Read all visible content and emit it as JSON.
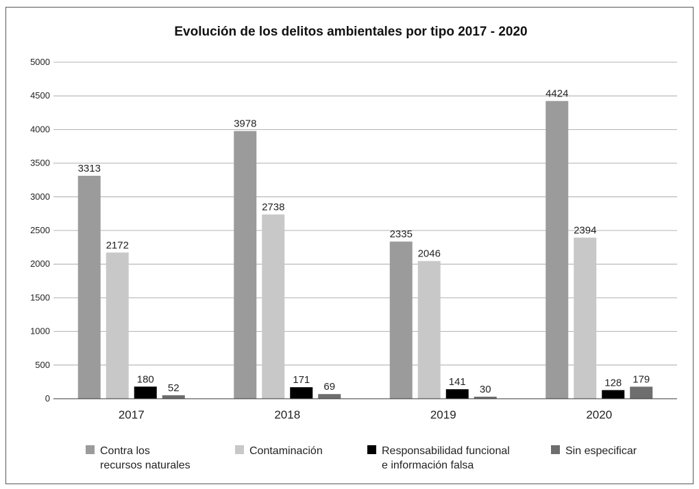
{
  "chart_data": {
    "type": "bar",
    "title": "Evolución de los delitos ambientales por tipo 2017 - 2020",
    "xlabel": "",
    "ylabel": "",
    "categories": [
      "2017",
      "2018",
      "2019",
      "2020"
    ],
    "ylim": [
      0,
      5000
    ],
    "yticks": [
      0,
      500,
      1000,
      1500,
      2000,
      2500,
      3000,
      3500,
      4000,
      4500,
      5000
    ],
    "grid": true,
    "legend_position": "bottom",
    "series": [
      {
        "name": "Contra los recursos naturales",
        "legend_lines": [
          "Contra los",
          "recursos naturales"
        ],
        "color": "#9b9b9b",
        "values": [
          3313,
          3978,
          2335,
          4424
        ]
      },
      {
        "name": "Contaminación",
        "legend_lines": [
          "Contaminación"
        ],
        "color": "#c8c8c8",
        "values": [
          2172,
          2738,
          2046,
          2394
        ]
      },
      {
        "name": "Responsabilidad funcional e información falsa",
        "legend_lines": [
          "Responsabilidad funcional",
          "e información falsa"
        ],
        "color": "#000000",
        "values": [
          180,
          171,
          141,
          128
        ]
      },
      {
        "name": "Sin especificar",
        "legend_lines": [
          "Sin especificar"
        ],
        "color": "#6e6e6e",
        "values": [
          52,
          69,
          30,
          179
        ]
      }
    ]
  }
}
